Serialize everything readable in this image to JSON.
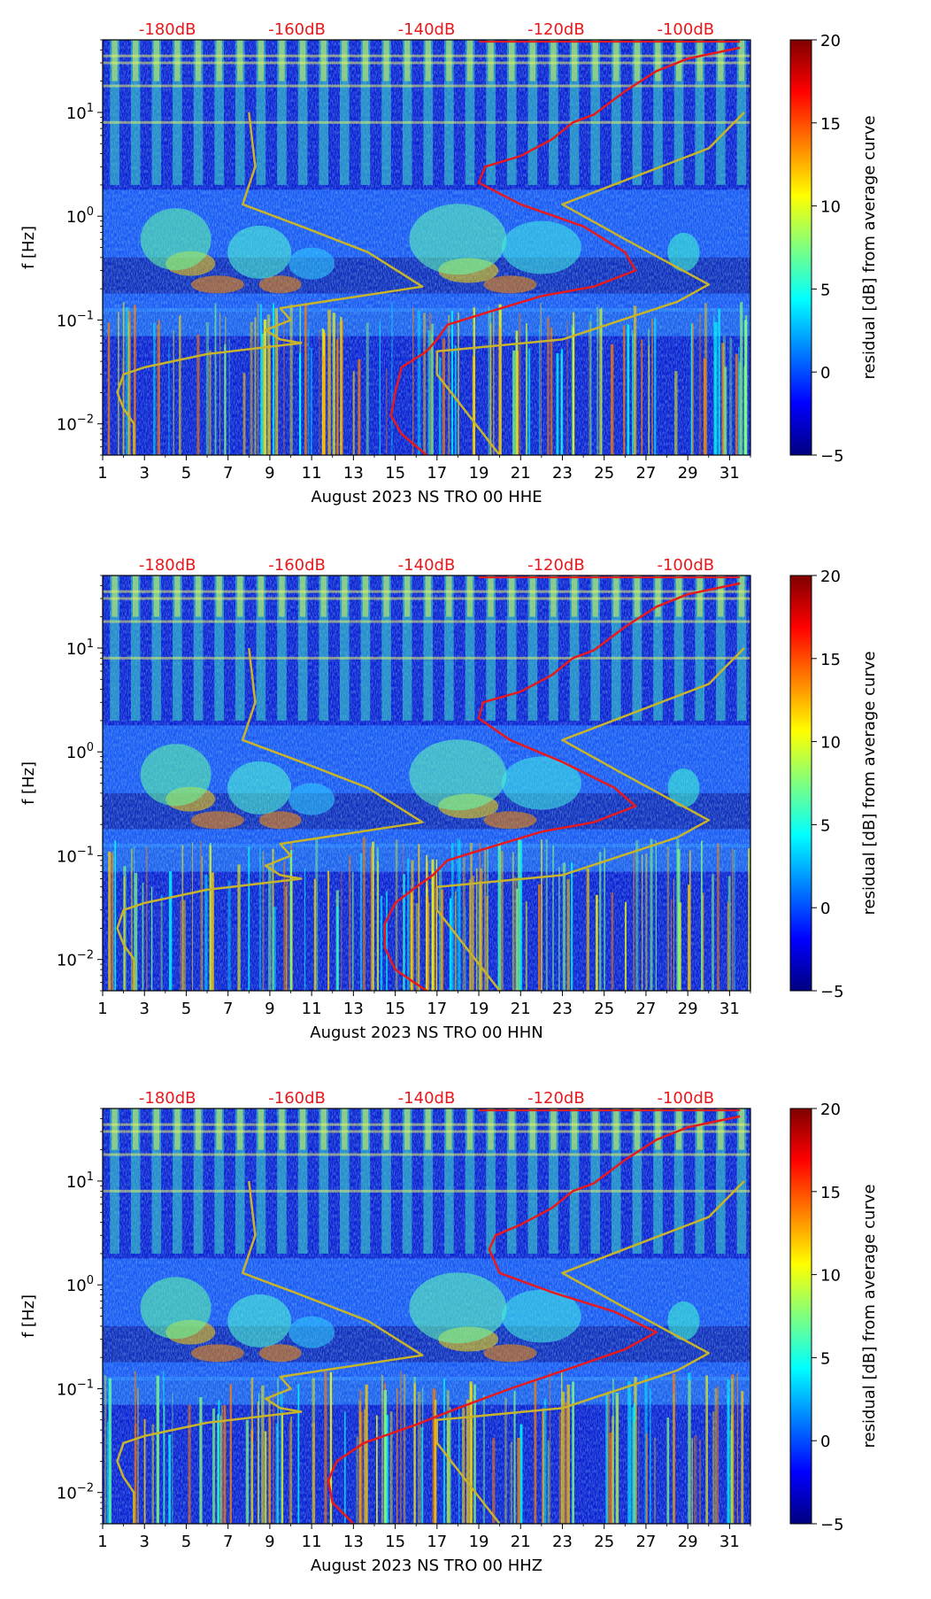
{
  "colormap": [
    "#00007f",
    "#0000ff",
    "#007fff",
    "#00ffff",
    "#7fff7f",
    "#ffff00",
    "#ff7f00",
    "#ff0000",
    "#7f0000"
  ],
  "line_colors": {
    "median_curve": "#e8191c",
    "noise_model": "#c8b42a",
    "top_axis_text": "#e8191c"
  },
  "panel_defaults": {
    "x_ticks": [
      "1",
      "3",
      "5",
      "7",
      "9",
      "11",
      "13",
      "15",
      "17",
      "19",
      "21",
      "23",
      "25",
      "27",
      "29",
      "31"
    ],
    "x_range": [
      1,
      32
    ],
    "y_label": "f [Hz]",
    "y_ticks": [
      {
        "base": "10",
        "exp": "1",
        "value": 10
      },
      {
        "base": "10",
        "exp": "0",
        "value": 1
      },
      {
        "base": "10",
        "exp": "−1",
        "value": 0.1
      },
      {
        "base": "10",
        "exp": "−2",
        "value": 0.01
      }
    ],
    "y_range_hz": [
      0.005,
      50
    ],
    "top_axis_labels": [
      "-180dB",
      "-160dB",
      "-140dB",
      "-120dB",
      "-100dB"
    ],
    "colorbar": {
      "label": "residual [dB] from average curve",
      "ticks": [
        "20",
        "15",
        "10",
        "5",
        "0",
        "−5"
      ],
      "range": [
        -5,
        20
      ]
    },
    "noise_model": {
      "name": "yellow noise model",
      "x_day": [
        8,
        8.3,
        7.7,
        10.5,
        13.7,
        16.3,
        9.5,
        10,
        8.8,
        9.5,
        10.5,
        6,
        3,
        2,
        1.7,
        2,
        2.5,
        2.5
      ],
      "f_hz": [
        10,
        3,
        1.3,
        0.8,
        0.45,
        0.21,
        0.13,
        0.1,
        0.08,
        0.065,
        0.06,
        0.047,
        0.035,
        0.03,
        0.02,
        0.014,
        0.01,
        0.005
      ]
    },
    "noise_model_2": {
      "name": "yellow noise model (high)",
      "x_day": [
        31.7,
        30,
        23,
        26,
        30,
        28.5,
        23,
        17,
        17,
        20
      ],
      "f_hz": [
        10,
        4.5,
        1.3,
        0.6,
        0.22,
        0.15,
        0.065,
        0.05,
        0.03,
        0.005
      ]
    }
  },
  "chart_data": [
    {
      "type": "heatmap",
      "title": "August 2023 NS TRO 00 HHE",
      "xlabel": "August 2023 NS TRO 00 HHE",
      "median_curve": {
        "x_day": [
          16.5,
          15.3,
          14.8,
          15.0,
          15.3,
          16.5,
          17.0,
          17.5,
          19.5,
          22.0,
          24.5,
          26.5,
          26.0,
          24.0,
          21.0,
          19.0,
          19.3,
          21.0,
          22.5,
          23.5,
          24.5,
          26.0,
          27.5,
          29.0,
          31.5
        ],
        "f_hz": [
          0.005,
          0.008,
          0.012,
          0.02,
          0.035,
          0.05,
          0.065,
          0.09,
          0.12,
          0.17,
          0.21,
          0.3,
          0.45,
          0.8,
          1.3,
          2.1,
          3.0,
          3.8,
          5.5,
          8.0,
          9.5,
          16,
          25,
          33,
          42
        ]
      }
    },
    {
      "type": "heatmap",
      "title": "August 2023 NS TRO 00 HHN",
      "xlabel": "August 2023 NS TRO 00 HHN",
      "median_curve": {
        "x_day": [
          16.5,
          15.0,
          14.5,
          14.5,
          15.0,
          16.0,
          16.8,
          17.5,
          19.5,
          22.0,
          24.5,
          26.5,
          25.5,
          23.0,
          20.5,
          19.0,
          19.2,
          21.0,
          22.5,
          23.5,
          24.5,
          26.0,
          27.5,
          29.0,
          31.5
        ],
        "f_hz": [
          0.005,
          0.008,
          0.013,
          0.022,
          0.035,
          0.05,
          0.065,
          0.09,
          0.12,
          0.17,
          0.21,
          0.3,
          0.45,
          0.8,
          1.3,
          2.1,
          3.0,
          3.8,
          5.5,
          8.0,
          9.5,
          16,
          25,
          33,
          42
        ]
      }
    },
    {
      "type": "heatmap",
      "title": "August 2023 NS TRO 00 HHZ",
      "xlabel": "August 2023 NS TRO 00 HHZ",
      "median_curve": {
        "x_day": [
          13.0,
          12.0,
          11.8,
          12.2,
          13.5,
          16.0,
          18.0,
          20.5,
          23.5,
          26.0,
          27.5,
          25.5,
          22.5,
          20.0,
          19.5,
          19.8,
          21.0,
          22.5,
          23.5,
          24.5,
          26.0,
          27.5,
          29.0,
          31.5
        ],
        "f_hz": [
          0.005,
          0.008,
          0.013,
          0.02,
          0.03,
          0.045,
          0.065,
          0.1,
          0.16,
          0.24,
          0.35,
          0.55,
          0.85,
          1.3,
          2.2,
          3.0,
          3.8,
          5.5,
          8.0,
          9.5,
          16,
          25,
          33,
          42
        ]
      }
    }
  ]
}
